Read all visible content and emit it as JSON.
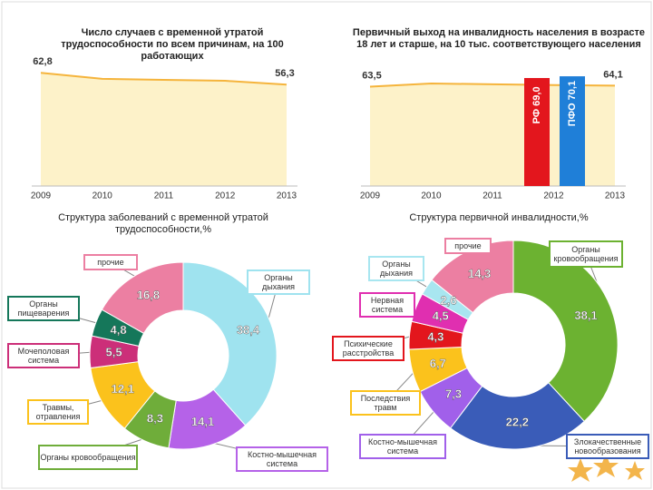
{
  "chart_data": [
    {
      "type": "area",
      "title": "Число случаев с временной утратой трудоспособности по всем причинам, на 100 работающих",
      "categories": [
        "2009",
        "2010",
        "2011",
        "2012",
        "2013"
      ],
      "values": [
        62.8,
        59.5,
        58.9,
        58.4,
        56.3
      ],
      "value_labels": [
        "62,8",
        null,
        null,
        null,
        "56,3"
      ],
      "color": "#f5b43c",
      "fill": "#fdf2c9",
      "ylim": [
        0,
        70
      ]
    },
    {
      "type": "area",
      "title": "Первичный выход на инвалидность населения в возрасте 18 лет и старше, на 10 тыс. соответствующего населения",
      "categories": [
        "2009",
        "2010",
        "2011",
        "2012",
        "2013"
      ],
      "values": [
        63.5,
        65.5,
        65.0,
        64.5,
        64.1
      ],
      "value_labels": [
        "63,5",
        null,
        null,
        null,
        "64,1"
      ],
      "color": "#f5b43c",
      "fill": "#fdf2c9",
      "ylim": [
        0,
        80
      ],
      "bars": [
        {
          "label": "РФ 69,0",
          "value": 69.0,
          "color": "#e3161d"
        },
        {
          "label": "ПФО 70,1",
          "value": 70.1,
          "color": "#1f7fd8"
        }
      ]
    },
    {
      "type": "donut",
      "title": "Структура заболеваний с временной утратой трудоспособности,%",
      "categories": [
        "Органы дыхания",
        "Костно-мышечная система",
        "Органы кровообращения",
        "Травмы, отравления",
        "Мочеполовая система",
        "Органы пищеварения",
        "прочие"
      ],
      "values": [
        38.4,
        14.1,
        8.3,
        12.1,
        5.5,
        4.8,
        16.8
      ],
      "value_labels": [
        "38,4",
        "14,1",
        "8,3",
        "12,1",
        "5,5",
        "4,8",
        "16,8"
      ],
      "colors": [
        "#9fe3ef",
        "#b562e8",
        "#6fad3a",
        "#fbc21c",
        "#cc2f79",
        "#15775a",
        "#ec7fa2"
      ]
    },
    {
      "type": "donut",
      "title": "Структура первичной инвалидности,%",
      "categories": [
        "Органы кровообращения",
        "Злокачественные новообразования",
        "Костно-мышечная система",
        "Последствия травм",
        "Психические расстройства",
        "Нервная система",
        "Органы дыхания",
        "прочие"
      ],
      "values": [
        38.1,
        22.2,
        7.3,
        6.7,
        4.3,
        4.5,
        2.6,
        14.3
      ],
      "value_labels": [
        "38,1",
        "22,2",
        "7,3",
        "6,7",
        "4,3",
        "4,5",
        "2,6",
        "14,3"
      ],
      "colors": [
        "#6cb231",
        "#3a5cb8",
        "#a160ea",
        "#fbc21c",
        "#e3161d",
        "#e02fb0",
        "#a8e6f0",
        "#ec7fa2"
      ]
    }
  ]
}
